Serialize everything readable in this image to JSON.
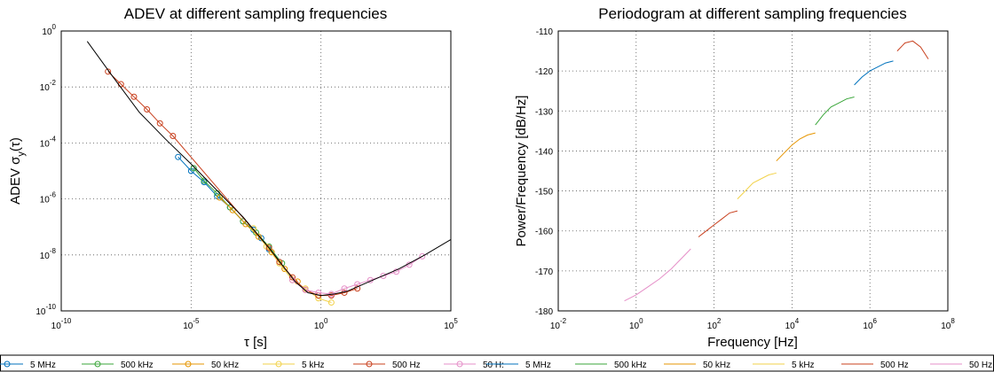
{
  "colors": {
    "5 MHz": "#0072bd",
    "500 kHz": "#3aa63a",
    "50 kHz": "#e69500",
    "5 kHz": "#f2d24a",
    "500 Hz": "#c8401e",
    "50 Hz": "#e58fc8",
    "fit": "#000000"
  },
  "chart_data": [
    {
      "type": "line",
      "title": "ADEV at different sampling frequencies",
      "xlabel": "τ [s]",
      "ylabel_main": "ADEV σ",
      "ylabel_sub": "y",
      "ylabel_tail": "(τ)",
      "xscale": "log",
      "yscale": "log",
      "xlim_exp": [
        -10,
        5
      ],
      "ylim_exp": [
        -10,
        0
      ],
      "xticks_exp": [
        -10,
        -5,
        0,
        5
      ],
      "yticks_exp": [
        -10,
        -8,
        -6,
        -4,
        -2,
        0
      ],
      "grid": true,
      "fit_line": {
        "name": "",
        "log_x": [
          -9.0,
          -8.0,
          -7.0,
          -6.0,
          -5.0,
          -4.0,
          -3.0,
          -2.0,
          -1.5,
          -1.0,
          -0.5,
          0.0,
          0.5,
          1.0,
          1.5,
          2.0,
          3.0,
          4.0,
          5.0
        ],
        "log_y": [
          -0.37,
          -1.65,
          -2.9,
          -3.85,
          -4.75,
          -5.7,
          -6.65,
          -7.75,
          -8.35,
          -8.95,
          -9.35,
          -9.45,
          -9.4,
          -9.3,
          -9.1,
          -8.9,
          -8.5,
          -8.0,
          -7.45
        ]
      },
      "series": [
        {
          "name": "5 MHz",
          "log_x": [
            -5.5,
            -5.0,
            -4.5,
            -4.0,
            -3.5,
            -3.0,
            -2.6,
            -2.3,
            -2.0
          ],
          "log_y": [
            -4.5,
            -5.0,
            -5.4,
            -5.9,
            -6.3,
            -6.8,
            -7.1,
            -7.4,
            -7.8
          ],
          "markers": true
        },
        {
          "name": "500 kHz",
          "log_x": [
            -4.9,
            -4.5,
            -4.0,
            -3.5,
            -3.0,
            -2.5,
            -2.0,
            -1.5
          ],
          "log_y": [
            -4.9,
            -5.35,
            -5.8,
            -6.3,
            -6.8,
            -7.2,
            -7.7,
            -8.3
          ],
          "markers": true
        },
        {
          "name": "50 kHz",
          "log_x": [
            -3.9,
            -3.4,
            -2.9,
            -2.4,
            -1.9,
            -1.4,
            -0.9
          ],
          "log_y": [
            -5.95,
            -6.4,
            -6.9,
            -7.35,
            -7.9,
            -8.5,
            -8.95
          ],
          "markers": true
        },
        {
          "name": "5 kHz",
          "log_x": [
            -2.6,
            -2.1,
            -1.6,
            -1.1,
            -0.6,
            -0.1,
            0.4
          ],
          "log_y": [
            -7.05,
            -7.7,
            -8.3,
            -8.9,
            -9.2,
            -9.55,
            -9.7
          ],
          "markers": true
        },
        {
          "name": "500 Hz",
          "log_x": [
            -8.2,
            -7.7,
            -7.2,
            -6.7,
            -6.2,
            -5.7,
            -2.0,
            -1.6,
            -1.1,
            -0.6,
            -0.1,
            0.4,
            0.9,
            1.4
          ],
          "log_y": [
            -1.45,
            -1.9,
            -2.35,
            -2.8,
            -3.3,
            -3.75,
            -7.75,
            -8.25,
            -8.8,
            -9.25,
            -9.45,
            -9.45,
            -9.35,
            -9.2
          ],
          "markers": true
        },
        {
          "name": "50 Hz",
          "log_x": [
            -1.1,
            -0.6,
            -0.1,
            0.4,
            0.9,
            1.4,
            1.9,
            2.4,
            2.9,
            3.4,
            3.9
          ],
          "log_y": [
            -8.9,
            -9.25,
            -9.35,
            -9.4,
            -9.2,
            -9.05,
            -8.9,
            -8.75,
            -8.6,
            -8.35,
            -8.05
          ],
          "markers": true
        }
      ]
    },
    {
      "type": "line",
      "title": "Periodogram at different sampling frequencies",
      "xlabel": "Frequency [Hz]",
      "ylabel": "Power/Frequency [dB/Hz]",
      "xscale": "log",
      "xlim_exp": [
        -2,
        8
      ],
      "xticks_exp": [
        -2,
        0,
        2,
        4,
        6,
        8
      ],
      "ylim": [
        -180,
        -110
      ],
      "yticks": [
        -180,
        -170,
        -160,
        -150,
        -140,
        -130,
        -120,
        -110
      ],
      "grid": true,
      "series": [
        {
          "name": "50 Hz",
          "log_x": [
            -0.3,
            0.0,
            0.3,
            0.6,
            0.9,
            1.2,
            1.4
          ],
          "y": [
            -177.5,
            -176.0,
            -174.0,
            -172.0,
            -169.5,
            -166.5,
            -164.5
          ]
        },
        {
          "name": "500 Hz",
          "log_x": [
            1.6,
            1.8,
            2.0,
            2.2,
            2.4,
            2.6
          ],
          "y": [
            -161.5,
            -160.0,
            -158.5,
            -157.0,
            -155.5,
            -155.0
          ]
        },
        {
          "name": "5 kHz",
          "log_x": [
            2.6,
            2.8,
            3.0,
            3.2,
            3.4,
            3.6
          ],
          "y": [
            -152.0,
            -150.0,
            -148.0,
            -147.0,
            -146.0,
            -145.5
          ]
        },
        {
          "name": "50 kHz",
          "log_x": [
            3.6,
            3.8,
            4.0,
            4.2,
            4.4,
            4.6
          ],
          "y": [
            -142.5,
            -140.5,
            -138.5,
            -137.0,
            -136.0,
            -135.5
          ]
        },
        {
          "name": "500 kHz",
          "log_x": [
            4.6,
            4.8,
            5.0,
            5.2,
            5.4,
            5.6
          ],
          "y": [
            -133.5,
            -131.0,
            -129.0,
            -128.0,
            -127.0,
            -126.5
          ]
        },
        {
          "name": "5 MHz",
          "log_x": [
            5.6,
            5.8,
            6.0,
            6.2,
            6.4,
            6.6
          ],
          "y": [
            -123.5,
            -121.5,
            -120.0,
            -119.0,
            -118.0,
            -117.5
          ]
        },
        {
          "name": "500 Hz",
          "log_x": [
            6.7,
            6.9,
            7.1,
            7.3,
            7.5
          ],
          "y": [
            -115.0,
            -113.0,
            -112.5,
            -114.0,
            -117.0
          ]
        }
      ]
    }
  ],
  "legend_left": [
    "5 MHz",
    "500 kHz",
    "50 kHz",
    "5 kHz",
    "500 Hz",
    "50 H:"
  ],
  "legend_right": [
    "5 MHz",
    "500 kHz",
    "50 kHz",
    "5 kHz",
    "500 Hz",
    "50 Hz"
  ]
}
